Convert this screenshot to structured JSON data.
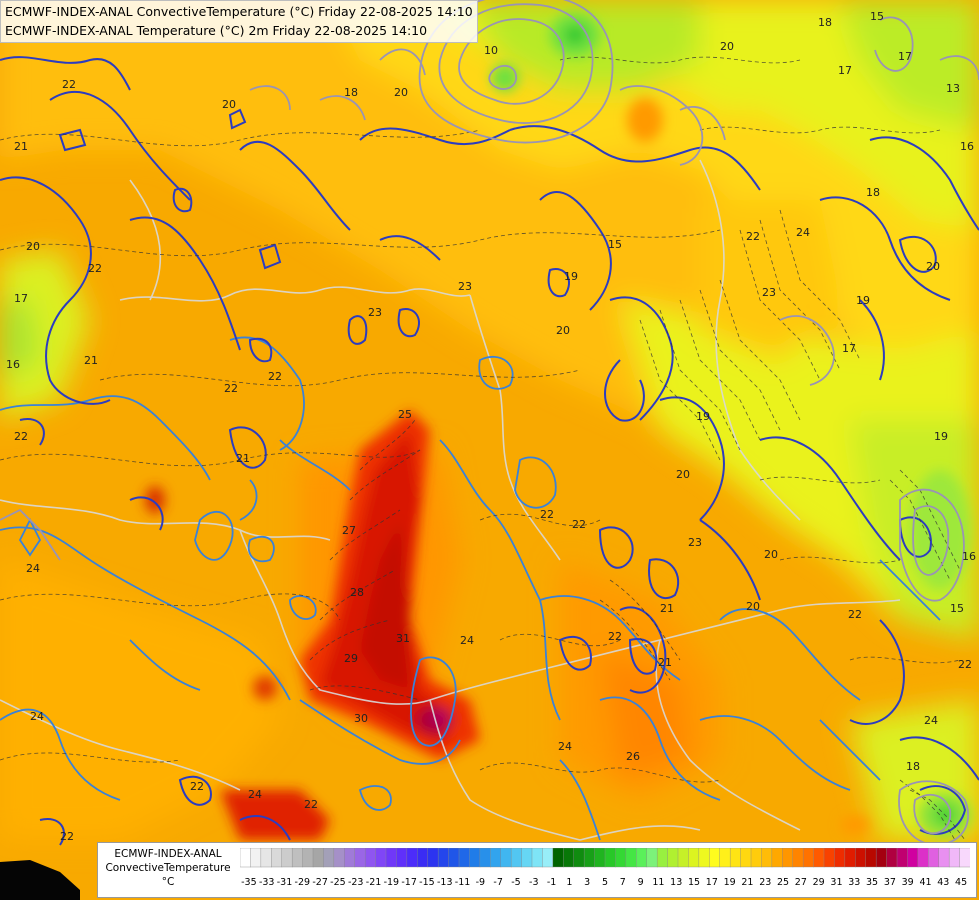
{
  "header": {
    "title_line_1": "ECMWF-INDEX-ANAL ConvectiveTemperature (°C) Friday 22-08-2025 14:10",
    "title_line_2": "ECMWF-INDEX-ANAL Temperature (°C) 2m Friday 22-08-2025 14:10"
  },
  "legend": {
    "model": "ECMWF-INDEX-ANAL",
    "parameter": "ConvectiveTemperature",
    "unit": "°C",
    "tick_labels": [
      "-35",
      "-33",
      "-31",
      "-29",
      "-27",
      "-25",
      "-23",
      "-21",
      "-19",
      "-17",
      "-15",
      "-13",
      "-11",
      "-9",
      "-7",
      "-5",
      "-3",
      "-1",
      "1",
      "3",
      "5",
      "7",
      "9",
      "11",
      "13",
      "15",
      "17",
      "19",
      "21",
      "23",
      "25",
      "27",
      "29",
      "31",
      "33",
      "35",
      "37",
      "39",
      "41",
      "43",
      "45"
    ],
    "colors": [
      "#ffffff",
      "#f2f2f2",
      "#e6e6e6",
      "#d9d9d9",
      "#cccccc",
      "#bfbfbf",
      "#b3b3b3",
      "#a6a6a6",
      "#a3a0b8",
      "#a590c8",
      "#a07ad8",
      "#9a66e6",
      "#8f55f0",
      "#8046f6",
      "#7038f8",
      "#6030fa",
      "#4c2cfa",
      "#3a2cf4",
      "#2c34f0",
      "#2446ec",
      "#2056e8",
      "#2068e8",
      "#207ce8",
      "#2890ea",
      "#32a4ee",
      "#40b6f0",
      "#52c6f2",
      "#66d6f4",
      "#7ee4f6",
      "#98eef8",
      "#006400",
      "#087808",
      "#108c10",
      "#18a018",
      "#20b420",
      "#28c828",
      "#34d834",
      "#44e644",
      "#5af05a",
      "#7cf27a",
      "#98f040",
      "#b0f030",
      "#c6f028",
      "#dcf420",
      "#eef820",
      "#fffc1e",
      "#fff01a",
      "#ffe414",
      "#ffd810",
      "#ffcc0c",
      "#ffbc08",
      "#ffa800",
      "#ff9600",
      "#ff8400",
      "#ff7200",
      "#ff5a00",
      "#f84200",
      "#ee2c00",
      "#e01c00",
      "#cc1000",
      "#b80800",
      "#a40010",
      "#b00040",
      "#c00070",
      "#d000a0",
      "#dc30c8",
      "#e060e0",
      "#e890f0",
      "#f0b8f8",
      "#f8d8fc"
    ]
  },
  "map": {
    "temperature_labels": [
      {
        "id": "t-22-a",
        "text": "22"
      },
      {
        "id": "t-20-a",
        "text": "20"
      },
      {
        "id": "t-21-a",
        "text": "21"
      },
      {
        "id": "t-18-a",
        "text": "18"
      },
      {
        "id": "t-20-b",
        "text": "20"
      },
      {
        "id": "t-20-c",
        "text": "20"
      },
      {
        "id": "t-17-a",
        "text": "17"
      },
      {
        "id": "t-18-b",
        "text": "18"
      },
      {
        "id": "t-17-b",
        "text": "17"
      },
      {
        "id": "t-13-a",
        "text": "13"
      },
      {
        "id": "t-15-a",
        "text": "15"
      },
      {
        "id": "t-16-a",
        "text": "16"
      },
      {
        "id": "t-18-c",
        "text": "18"
      },
      {
        "id": "t-22-b",
        "text": "22"
      },
      {
        "id": "t-20-d",
        "text": "20"
      },
      {
        "id": "t-17-c",
        "text": "17"
      },
      {
        "id": "t-16-b",
        "text": "16"
      },
      {
        "id": "t-21-b",
        "text": "21"
      },
      {
        "id": "t-22-c",
        "text": "22"
      },
      {
        "id": "t-22-d",
        "text": "22"
      },
      {
        "id": "t-23-a",
        "text": "23"
      },
      {
        "id": "t-23-b",
        "text": "23"
      },
      {
        "id": "t-15-b",
        "text": "15"
      },
      {
        "id": "t-19-a",
        "text": "19"
      },
      {
        "id": "t-20-e",
        "text": "20"
      },
      {
        "id": "t-22-e",
        "text": "22"
      },
      {
        "id": "t-24-a",
        "text": "24"
      },
      {
        "id": "t-23-c",
        "text": "23"
      },
      {
        "id": "t-20-f",
        "text": "20"
      },
      {
        "id": "t-19-b",
        "text": "19"
      },
      {
        "id": "t-17-d",
        "text": "17"
      },
      {
        "id": "t-21-c",
        "text": "21"
      },
      {
        "id": "t-22-f",
        "text": "22"
      },
      {
        "id": "t-22-g",
        "text": "22"
      },
      {
        "id": "t-21-d",
        "text": "21"
      },
      {
        "id": "t-25-a",
        "text": "25"
      },
      {
        "id": "t-19-c",
        "text": "19"
      },
      {
        "id": "t-19-d",
        "text": "19"
      },
      {
        "id": "t-20-g",
        "text": "20"
      },
      {
        "id": "t-22-h",
        "text": "22"
      },
      {
        "id": "t-23-d",
        "text": "23"
      },
      {
        "id": "t-24-b",
        "text": "24"
      },
      {
        "id": "t-27-a",
        "text": "27"
      },
      {
        "id": "t-28-a",
        "text": "28"
      },
      {
        "id": "t-29-a",
        "text": "29"
      },
      {
        "id": "t-31-a",
        "text": "31"
      },
      {
        "id": "t-20-h",
        "text": "20"
      },
      {
        "id": "t-22-i",
        "text": "22"
      },
      {
        "id": "t-21-e",
        "text": "21"
      },
      {
        "id": "t-20-i",
        "text": "20"
      },
      {
        "id": "t-24-c",
        "text": "24"
      },
      {
        "id": "t-22-j",
        "text": "22"
      },
      {
        "id": "t-16-c",
        "text": "16"
      },
      {
        "id": "t-24-d",
        "text": "24"
      },
      {
        "id": "t-30-a",
        "text": "30"
      },
      {
        "id": "t-26-a",
        "text": "26"
      },
      {
        "id": "t-24-e",
        "text": "24"
      },
      {
        "id": "t-22-k",
        "text": "22"
      },
      {
        "id": "t-24-f",
        "text": "24"
      },
      {
        "id": "t-22-l",
        "text": "22"
      },
      {
        "id": "t-22-m",
        "text": "22"
      },
      {
        "id": "t-24-g",
        "text": "24"
      },
      {
        "id": "t-22-n",
        "text": "22"
      },
      {
        "id": "t-18-d",
        "text": "18"
      },
      {
        "id": "t-15-c",
        "text": "15"
      },
      {
        "id": "t-10-a",
        "text": "10"
      }
    ]
  }
}
